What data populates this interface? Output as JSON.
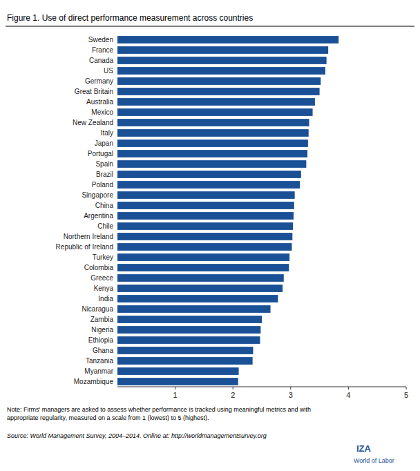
{
  "chart_data": {
    "type": "bar",
    "orientation": "horizontal",
    "title": "Figure 1. Use of direct performance measurement across countries",
    "categories": [
      "Sweden",
      "France",
      "Canada",
      "US",
      "Germany",
      "Great Britain",
      "Australia",
      "Mexico",
      "New Zealand",
      "Italy",
      "Japan",
      "Portugal",
      "Spain",
      "Brazil",
      "Poland",
      "Singapore",
      "China",
      "Argentina",
      "Chile",
      "Northern Ireland",
      "Republic of Ireland",
      "Turkey",
      "Colombia",
      "Greece",
      "Kenya",
      "India",
      "Nicaragua",
      "Zambia",
      "Nigeria",
      "Ethiopia",
      "Ghana",
      "Tanzania",
      "Myanmar",
      "Mozambique"
    ],
    "values": [
      3.83,
      3.65,
      3.62,
      3.6,
      3.52,
      3.5,
      3.42,
      3.38,
      3.32,
      3.31,
      3.3,
      3.29,
      3.27,
      3.18,
      3.16,
      3.07,
      3.06,
      3.05,
      3.04,
      3.03,
      3.02,
      2.98,
      2.97,
      2.88,
      2.86,
      2.78,
      2.65,
      2.5,
      2.48,
      2.47,
      2.35,
      2.34,
      2.1,
      2.09
    ],
    "color": "#1a5096",
    "xlim": [
      0,
      5
    ],
    "xticks": [
      1,
      2,
      3,
      4,
      5
    ],
    "grid": false,
    "annotations": [
      "Note: Firms' managers are asked to assess whether performance is tracked using meaningful metrics and with\nappropriate regularity, measured on a scale from 1 (lowest) to 5 (highest).",
      "Source: World Management Survey, 2004–2014. Online at: http://worldmanagementsurvey.org",
      "IZA",
      "World of Labor"
    ]
  }
}
